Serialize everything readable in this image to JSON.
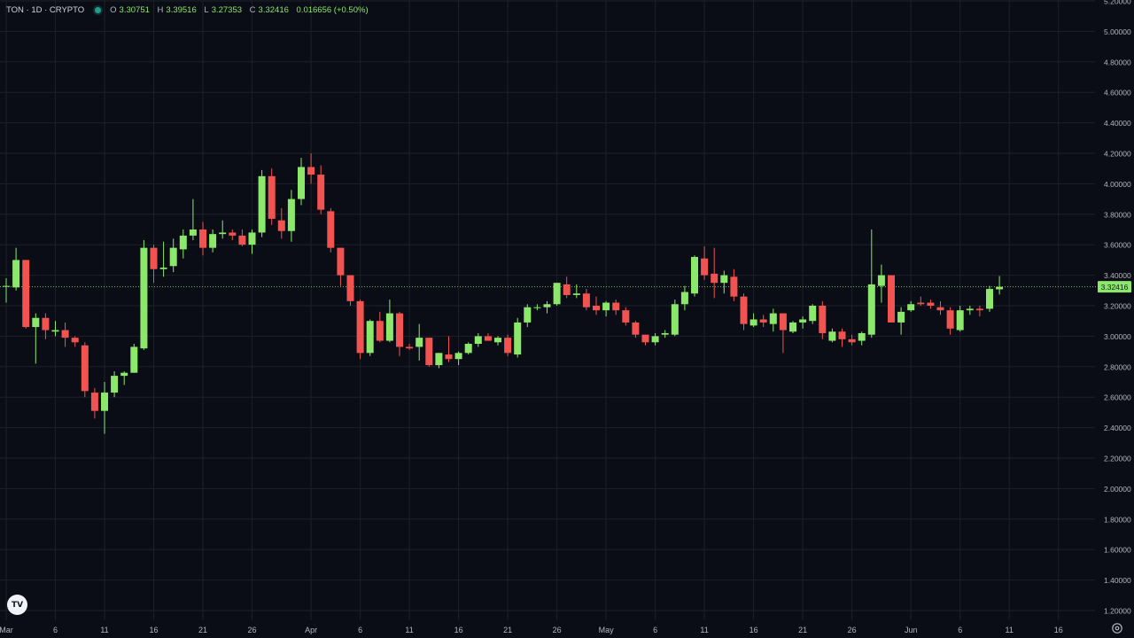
{
  "header": {
    "symbol": "TON · 1D · CRYPTO",
    "open_label": "O",
    "open": "3.30751",
    "high_label": "H",
    "high": "3.39516",
    "low_label": "L",
    "low": "3.27353",
    "close_label": "C",
    "close": "3.32416",
    "change": "0.016656 (+0.50%)"
  },
  "icons": {
    "logo": "tradingview-logo-icon",
    "settings": "gear-icon"
  },
  "colors": {
    "up": "#8be86a",
    "down": "#f05350",
    "grid": "#1c1f2b",
    "background": "#0b0d16",
    "axis_text": "#b2b5be"
  },
  "last_price_label": "3.32416",
  "chart_data": {
    "type": "candlestick",
    "title": "",
    "ylim": [
      1.2,
      5.2
    ],
    "y_ticks": [
      "1.20000",
      "1.40000",
      "1.60000",
      "1.80000",
      "2.00000",
      "2.20000",
      "2.40000",
      "2.60000",
      "2.80000",
      "3.00000",
      "3.20000",
      "3.40000",
      "3.60000",
      "3.80000",
      "4.00000",
      "4.20000",
      "4.40000",
      "4.60000",
      "4.80000",
      "5.00000",
      "5.20000"
    ],
    "x_ticks": [
      {
        "label": "Mar",
        "i": 0
      },
      {
        "label": "6",
        "i": 5
      },
      {
        "label": "11",
        "i": 10
      },
      {
        "label": "16",
        "i": 15
      },
      {
        "label": "21",
        "i": 20
      },
      {
        "label": "26",
        "i": 25
      },
      {
        "label": "Apr",
        "i": 31
      },
      {
        "label": "6",
        "i": 36
      },
      {
        "label": "11",
        "i": 41
      },
      {
        "label": "16",
        "i": 46
      },
      {
        "label": "21",
        "i": 51
      },
      {
        "label": "26",
        "i": 56
      },
      {
        "label": "May",
        "i": 61
      },
      {
        "label": "6",
        "i": 66
      },
      {
        "label": "11",
        "i": 71
      },
      {
        "label": "16",
        "i": 76
      },
      {
        "label": "21",
        "i": 81
      },
      {
        "label": "26",
        "i": 86
      },
      {
        "label": "Jun",
        "i": 92
      },
      {
        "label": "6",
        "i": 97
      },
      {
        "label": "11",
        "i": 102
      },
      {
        "label": "16",
        "i": 107
      }
    ],
    "last_price": 3.32416,
    "candles": [
      {
        "date": "Mar 1",
        "o": 3.33,
        "h": 3.38,
        "l": 3.22,
        "c": 3.33
      },
      {
        "date": "Mar 2",
        "o": 3.32,
        "h": 3.58,
        "l": 3.3,
        "c": 3.5
      },
      {
        "date": "Mar 3",
        "o": 3.5,
        "h": 3.5,
        "l": 3.05,
        "c": 3.06
      },
      {
        "date": "Mar 4",
        "o": 3.06,
        "h": 3.15,
        "l": 2.82,
        "c": 3.12
      },
      {
        "date": "Mar 5",
        "o": 3.12,
        "h": 3.15,
        "l": 2.98,
        "c": 3.04
      },
      {
        "date": "Mar 6",
        "o": 3.03,
        "h": 3.1,
        "l": 3.0,
        "c": 3.04
      },
      {
        "date": "Mar 7",
        "o": 3.04,
        "h": 3.09,
        "l": 2.93,
        "c": 2.99
      },
      {
        "date": "Mar 8",
        "o": 2.99,
        "h": 3.0,
        "l": 2.93,
        "c": 2.96
      },
      {
        "date": "Mar 9",
        "o": 2.94,
        "h": 2.96,
        "l": 2.6,
        "c": 2.64
      },
      {
        "date": "Mar 10",
        "o": 2.63,
        "h": 2.66,
        "l": 2.46,
        "c": 2.51
      },
      {
        "date": "Mar 11",
        "o": 2.51,
        "h": 2.7,
        "l": 2.36,
        "c": 2.63
      },
      {
        "date": "Mar 12",
        "o": 2.63,
        "h": 2.77,
        "l": 2.6,
        "c": 2.74
      },
      {
        "date": "Mar 13",
        "o": 2.74,
        "h": 2.77,
        "l": 2.68,
        "c": 2.76
      },
      {
        "date": "Mar 14",
        "o": 2.76,
        "h": 2.95,
        "l": 2.76,
        "c": 2.93
      },
      {
        "date": "Mar 15",
        "o": 2.92,
        "h": 3.63,
        "l": 2.91,
        "c": 3.58
      },
      {
        "date": "Mar 16",
        "o": 3.58,
        "h": 3.6,
        "l": 3.35,
        "c": 3.44
      },
      {
        "date": "Mar 17",
        "o": 3.44,
        "h": 3.62,
        "l": 3.39,
        "c": 3.45
      },
      {
        "date": "Mar 18",
        "o": 3.46,
        "h": 3.64,
        "l": 3.42,
        "c": 3.58
      },
      {
        "date": "Mar 19",
        "o": 3.57,
        "h": 3.7,
        "l": 3.51,
        "c": 3.66
      },
      {
        "date": "Mar 20",
        "o": 3.66,
        "h": 3.9,
        "l": 3.63,
        "c": 3.7
      },
      {
        "date": "Mar 21",
        "o": 3.7,
        "h": 3.75,
        "l": 3.53,
        "c": 3.58
      },
      {
        "date": "Mar 22",
        "o": 3.58,
        "h": 3.7,
        "l": 3.55,
        "c": 3.67
      },
      {
        "date": "Mar 23",
        "o": 3.67,
        "h": 3.76,
        "l": 3.64,
        "c": 3.68
      },
      {
        "date": "Mar 24",
        "o": 3.68,
        "h": 3.7,
        "l": 3.63,
        "c": 3.66
      },
      {
        "date": "Mar 25",
        "o": 3.66,
        "h": 3.7,
        "l": 3.59,
        "c": 3.6
      },
      {
        "date": "Mar 26",
        "o": 3.6,
        "h": 3.7,
        "l": 3.54,
        "c": 3.68
      },
      {
        "date": "Mar 27",
        "o": 3.68,
        "h": 4.09,
        "l": 3.65,
        "c": 4.05
      },
      {
        "date": "Mar 28",
        "o": 4.05,
        "h": 4.1,
        "l": 3.73,
        "c": 3.77
      },
      {
        "date": "Mar 29",
        "o": 3.76,
        "h": 3.84,
        "l": 3.64,
        "c": 3.69
      },
      {
        "date": "Mar 30",
        "o": 3.69,
        "h": 3.96,
        "l": 3.62,
        "c": 3.9
      },
      {
        "date": "Mar 31",
        "o": 3.9,
        "h": 4.17,
        "l": 3.86,
        "c": 4.11
      },
      {
        "date": "Apr 1",
        "o": 4.11,
        "h": 4.2,
        "l": 4.0,
        "c": 4.06
      },
      {
        "date": "Apr 2",
        "o": 4.06,
        "h": 4.12,
        "l": 3.8,
        "c": 3.83
      },
      {
        "date": "Apr 3",
        "o": 3.82,
        "h": 3.84,
        "l": 3.55,
        "c": 3.58
      },
      {
        "date": "Apr 4",
        "o": 3.58,
        "h": 3.58,
        "l": 3.33,
        "c": 3.4
      },
      {
        "date": "Apr 5",
        "o": 3.4,
        "h": 3.4,
        "l": 3.2,
        "c": 3.23
      },
      {
        "date": "Apr 6",
        "o": 3.23,
        "h": 3.24,
        "l": 2.85,
        "c": 2.89
      },
      {
        "date": "Apr 7",
        "o": 2.89,
        "h": 3.11,
        "l": 2.87,
        "c": 3.1
      },
      {
        "date": "Apr 8",
        "o": 3.1,
        "h": 3.16,
        "l": 2.96,
        "c": 2.97
      },
      {
        "date": "Apr 9",
        "o": 2.97,
        "h": 3.24,
        "l": 2.96,
        "c": 3.15
      },
      {
        "date": "Apr 10",
        "o": 3.15,
        "h": 3.16,
        "l": 2.87,
        "c": 2.93
      },
      {
        "date": "Apr 11",
        "o": 2.93,
        "h": 2.95,
        "l": 2.91,
        "c": 2.92
      },
      {
        "date": "Apr 12",
        "o": 2.93,
        "h": 3.08,
        "l": 2.84,
        "c": 2.99
      },
      {
        "date": "Apr 13",
        "o": 2.99,
        "h": 2.99,
        "l": 2.8,
        "c": 2.81
      },
      {
        "date": "Apr 14",
        "o": 2.81,
        "h": 2.89,
        "l": 2.79,
        "c": 2.89
      },
      {
        "date": "Apr 15",
        "o": 2.88,
        "h": 3.0,
        "l": 2.83,
        "c": 2.85
      },
      {
        "date": "Apr 16",
        "o": 2.85,
        "h": 2.9,
        "l": 2.81,
        "c": 2.89
      },
      {
        "date": "Apr 17",
        "o": 2.89,
        "h": 2.96,
        "l": 2.88,
        "c": 2.95
      },
      {
        "date": "Apr 18",
        "o": 2.95,
        "h": 3.02,
        "l": 2.93,
        "c": 3.0
      },
      {
        "date": "Apr 19",
        "o": 3.0,
        "h": 3.02,
        "l": 2.97,
        "c": 2.97
      },
      {
        "date": "Apr 20",
        "o": 2.96,
        "h": 3.0,
        "l": 2.94,
        "c": 2.99
      },
      {
        "date": "Apr 21",
        "o": 2.99,
        "h": 3.01,
        "l": 2.87,
        "c": 2.89
      },
      {
        "date": "Apr 22",
        "o": 2.88,
        "h": 3.12,
        "l": 2.86,
        "c": 3.09
      },
      {
        "date": "Apr 23",
        "o": 3.09,
        "h": 3.21,
        "l": 3.06,
        "c": 3.19
      },
      {
        "date": "Apr 24",
        "o": 3.19,
        "h": 3.21,
        "l": 3.17,
        "c": 3.19
      },
      {
        "date": "Apr 25",
        "o": 3.19,
        "h": 3.23,
        "l": 3.15,
        "c": 3.21
      },
      {
        "date": "Apr 26",
        "o": 3.21,
        "h": 3.35,
        "l": 3.2,
        "c": 3.35
      },
      {
        "date": "Apr 27",
        "o": 3.34,
        "h": 3.39,
        "l": 3.25,
        "c": 3.27
      },
      {
        "date": "Apr 28",
        "o": 3.27,
        "h": 3.34,
        "l": 3.25,
        "c": 3.28
      },
      {
        "date": "Apr 29",
        "o": 3.28,
        "h": 3.31,
        "l": 3.17,
        "c": 3.19
      },
      {
        "date": "Apr 30",
        "o": 3.2,
        "h": 3.26,
        "l": 3.14,
        "c": 3.17
      },
      {
        "date": "May 1",
        "o": 3.17,
        "h": 3.23,
        "l": 3.13,
        "c": 3.22
      },
      {
        "date": "May 2",
        "o": 3.22,
        "h": 3.24,
        "l": 3.14,
        "c": 3.17
      },
      {
        "date": "May 3",
        "o": 3.17,
        "h": 3.19,
        "l": 3.07,
        "c": 3.09
      },
      {
        "date": "May 4",
        "o": 3.09,
        "h": 3.1,
        "l": 2.99,
        "c": 3.01
      },
      {
        "date": "May 5",
        "o": 3.01,
        "h": 3.01,
        "l": 2.94,
        "c": 2.96
      },
      {
        "date": "May 6",
        "o": 2.96,
        "h": 3.02,
        "l": 2.94,
        "c": 3.0
      },
      {
        "date": "May 7",
        "o": 3.01,
        "h": 3.04,
        "l": 2.99,
        "c": 3.02
      },
      {
        "date": "May 8",
        "o": 3.01,
        "h": 3.24,
        "l": 3.0,
        "c": 3.21
      },
      {
        "date": "May 9",
        "o": 3.21,
        "h": 3.33,
        "l": 3.17,
        "c": 3.29
      },
      {
        "date": "May 10",
        "o": 3.28,
        "h": 3.53,
        "l": 3.26,
        "c": 3.52
      },
      {
        "date": "May 11",
        "o": 3.51,
        "h": 3.59,
        "l": 3.37,
        "c": 3.4
      },
      {
        "date": "May 12",
        "o": 3.41,
        "h": 3.58,
        "l": 3.25,
        "c": 3.35
      },
      {
        "date": "May 13",
        "o": 3.35,
        "h": 3.43,
        "l": 3.28,
        "c": 3.4
      },
      {
        "date": "May 14",
        "o": 3.39,
        "h": 3.44,
        "l": 3.23,
        "c": 3.26
      },
      {
        "date": "May 15",
        "o": 3.26,
        "h": 3.28,
        "l": 3.04,
        "c": 3.08
      },
      {
        "date": "May 16",
        "o": 3.07,
        "h": 3.15,
        "l": 3.06,
        "c": 3.11
      },
      {
        "date": "May 17",
        "o": 3.11,
        "h": 3.14,
        "l": 3.06,
        "c": 3.09
      },
      {
        "date": "May 18",
        "o": 3.08,
        "h": 3.18,
        "l": 3.03,
        "c": 3.15
      },
      {
        "date": "May 19",
        "o": 3.15,
        "h": 3.15,
        "l": 2.89,
        "c": 3.04
      },
      {
        "date": "May 20",
        "o": 3.03,
        "h": 3.1,
        "l": 3.02,
        "c": 3.09
      },
      {
        "date": "May 21",
        "o": 3.09,
        "h": 3.13,
        "l": 3.05,
        "c": 3.11
      },
      {
        "date": "May 22",
        "o": 3.1,
        "h": 3.21,
        "l": 3.08,
        "c": 3.2
      },
      {
        "date": "May 23",
        "o": 3.2,
        "h": 3.23,
        "l": 2.98,
        "c": 3.02
      },
      {
        "date": "May 24",
        "o": 2.97,
        "h": 3.05,
        "l": 2.96,
        "c": 3.03
      },
      {
        "date": "May 25",
        "o": 3.03,
        "h": 3.05,
        "l": 2.93,
        "c": 2.98
      },
      {
        "date": "May 26",
        "o": 2.98,
        "h": 3.01,
        "l": 2.94,
        "c": 2.96
      },
      {
        "date": "May 27",
        "o": 2.97,
        "h": 3.03,
        "l": 2.94,
        "c": 3.02
      },
      {
        "date": "May 28",
        "o": 3.01,
        "h": 3.7,
        "l": 2.99,
        "c": 3.34
      },
      {
        "date": "May 29",
        "o": 3.33,
        "h": 3.47,
        "l": 3.22,
        "c": 3.4
      },
      {
        "date": "May 30",
        "o": 3.4,
        "h": 3.4,
        "l": 3.09,
        "c": 3.09
      },
      {
        "date": "May 31",
        "o": 3.09,
        "h": 3.19,
        "l": 3.01,
        "c": 3.16
      },
      {
        "date": "Jun 1",
        "o": 3.17,
        "h": 3.23,
        "l": 3.16,
        "c": 3.21
      },
      {
        "date": "Jun 2",
        "o": 3.22,
        "h": 3.26,
        "l": 3.2,
        "c": 3.21
      },
      {
        "date": "Jun 3",
        "o": 3.22,
        "h": 3.24,
        "l": 3.18,
        "c": 3.2
      },
      {
        "date": "Jun 4",
        "o": 3.19,
        "h": 3.23,
        "l": 3.14,
        "c": 3.17
      },
      {
        "date": "Jun 5",
        "o": 3.17,
        "h": 3.19,
        "l": 3.01,
        "c": 3.05
      },
      {
        "date": "Jun 6",
        "o": 3.04,
        "h": 3.2,
        "l": 3.03,
        "c": 3.17
      },
      {
        "date": "Jun 7",
        "o": 3.17,
        "h": 3.2,
        "l": 3.14,
        "c": 3.18
      },
      {
        "date": "Jun 8",
        "o": 3.18,
        "h": 3.2,
        "l": 3.13,
        "c": 3.17
      },
      {
        "date": "Jun 9",
        "o": 3.18,
        "h": 3.33,
        "l": 3.16,
        "c": 3.31
      },
      {
        "date": "Jun 10",
        "o": 3.30751,
        "h": 3.39516,
        "l": 3.27353,
        "c": 3.32416
      }
    ]
  }
}
